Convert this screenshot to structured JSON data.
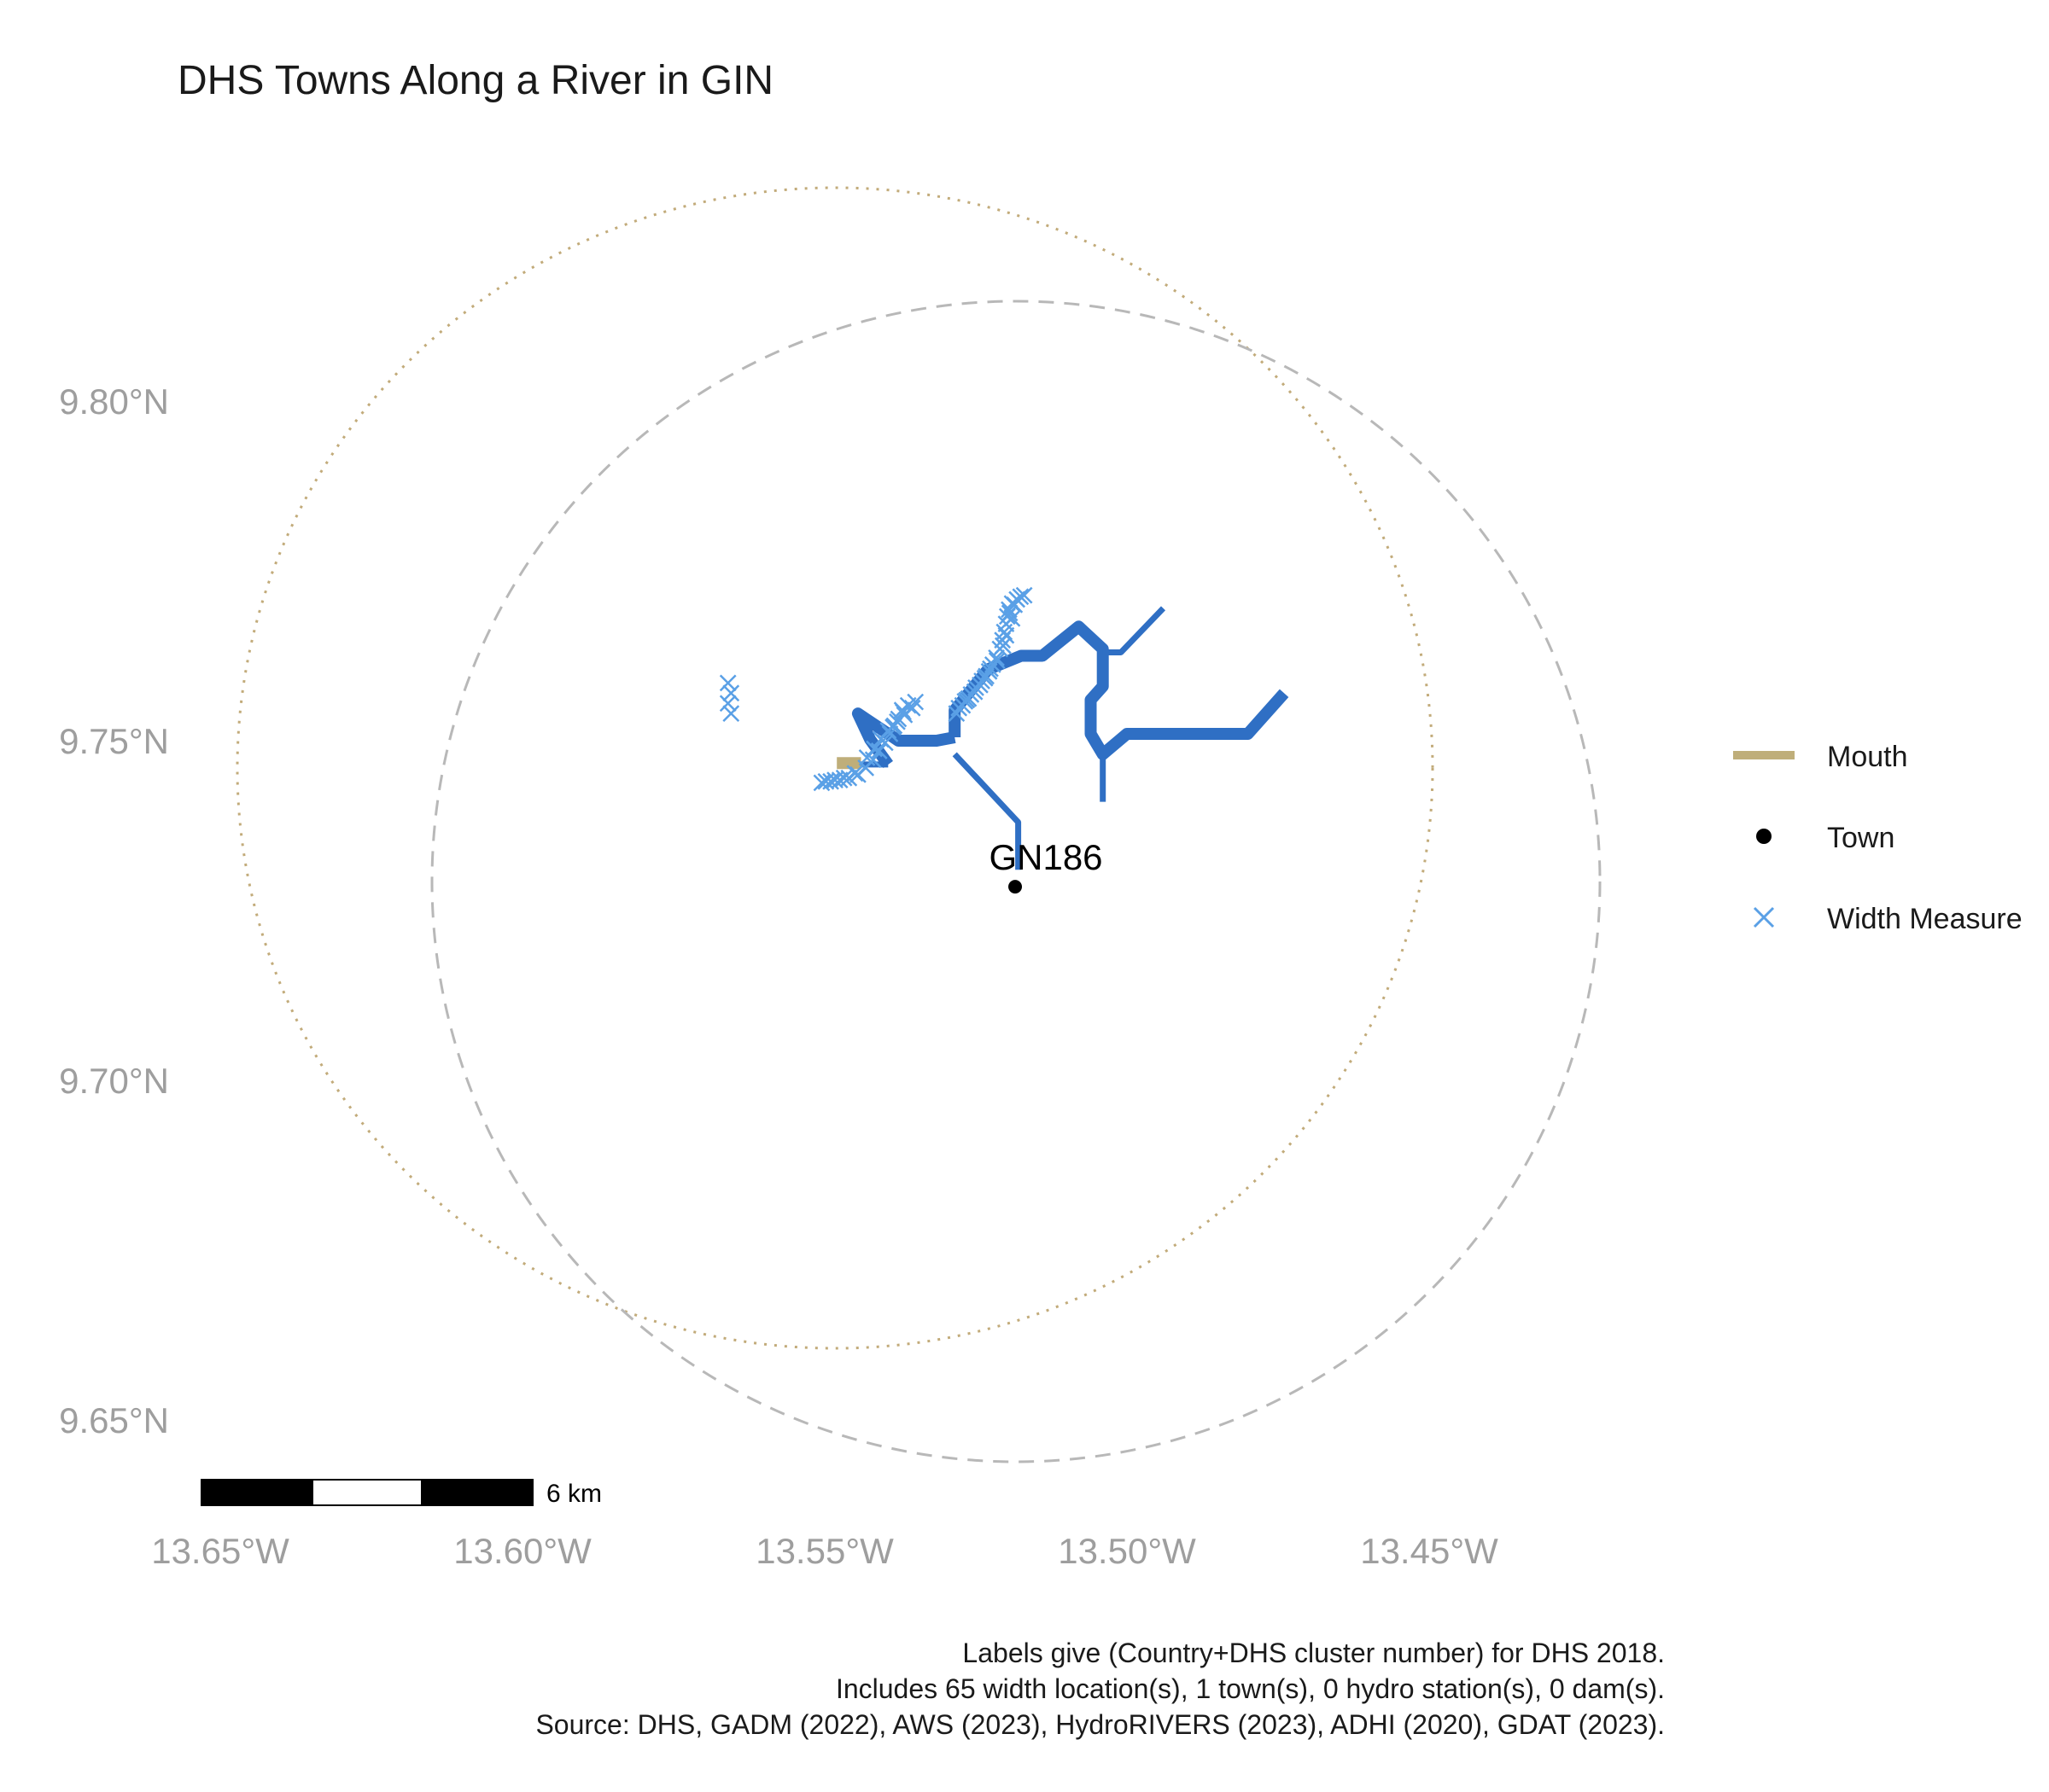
{
  "title": "DHS Towns Along a River in GIN",
  "colors": {
    "river": "#2f6fc4",
    "width_measure": "#5aa0e6",
    "mouth": "#bfae7a",
    "town": "#000000",
    "circle_dashed": "#b8b8b8",
    "circle_dotted": "#c2ab7a",
    "axis_text": "#9e9e9e"
  },
  "axes": {
    "x_ticks": [
      {
        "value": -13.65,
        "label": "13.65°W"
      },
      {
        "value": -13.6,
        "label": "13.60°W"
      },
      {
        "value": -13.55,
        "label": "13.55°W"
      },
      {
        "value": -13.5,
        "label": "13.50°W"
      },
      {
        "value": -13.45,
        "label": "13.45°W"
      }
    ],
    "y_ticks": [
      {
        "value": 9.8,
        "label": "9.80°N"
      },
      {
        "value": 9.75,
        "label": "9.75°N"
      },
      {
        "value": 9.7,
        "label": "9.70°N"
      },
      {
        "value": 9.65,
        "label": "9.65°N"
      }
    ]
  },
  "legend": {
    "items": [
      {
        "label": "Mouth",
        "symbol": "line"
      },
      {
        "label": "Town",
        "symbol": "dot"
      },
      {
        "label": "Width Measure",
        "symbol": "cross"
      }
    ]
  },
  "town": {
    "label": "GN186",
    "lon": -13.5185,
    "lat": 9.7285
  },
  "scale_bar": {
    "label": "6 km"
  },
  "caption": [
    "Labels give (Country+DHS cluster number) for DHS 2018.",
    "Includes 65 width location(s), 1 town(s), 0 hydro station(s), 0 dam(s).",
    "Source: DHS, GADM (2022), AWS (2023), HydroRIVERS (2023), ADHI (2020), GDAT (2023)."
  ],
  "rivers": [
    {
      "weight": 2,
      "coords": [
        [
          -13.5395,
          9.7465
        ],
        [
          -13.5425,
          9.7502
        ],
        [
          -13.5445,
          9.754
        ],
        [
          -13.5378,
          9.75
        ],
        [
          -13.5315,
          9.75
        ],
        [
          -13.5285,
          9.7505
        ]
      ]
    },
    {
      "weight": 2,
      "coords": [
        [
          -13.5285,
          9.7505
        ],
        [
          -13.5285,
          9.7545
        ],
        [
          -13.523,
          9.7605
        ],
        [
          -13.5175,
          9.7625
        ],
        [
          -13.514,
          9.7625
        ],
        [
          -13.508,
          9.7668
        ],
        [
          -13.504,
          9.7635
        ],
        [
          -13.504,
          9.758
        ],
        [
          -13.506,
          9.756
        ],
        [
          -13.506,
          9.751
        ],
        [
          -13.504,
          9.748
        ],
        [
          -13.5,
          9.751
        ],
        [
          -13.494,
          9.751
        ],
        [
          -13.48,
          9.751
        ],
        [
          -13.474,
          9.757
        ]
      ]
    },
    {
      "weight": 1,
      "coords": [
        [
          -13.5285,
          9.748
        ],
        [
          -13.518,
          9.738
        ],
        [
          -13.518,
          9.731
        ]
      ]
    },
    {
      "weight": 1,
      "coords": [
        [
          -13.504,
          9.7475
        ],
        [
          -13.504,
          9.741
        ]
      ]
    },
    {
      "weight": 1,
      "coords": [
        [
          -13.504,
          9.763
        ],
        [
          -13.501,
          9.763
        ],
        [
          -13.494,
          9.7695
        ]
      ]
    },
    {
      "weight": 1,
      "coords": [
        [
          -13.546,
          9.7465
        ],
        [
          -13.5395,
          9.7465
        ]
      ]
    }
  ],
  "mouth": [
    [
      -13.548,
      9.7467
    ],
    [
      -13.544,
      9.7467
    ]
  ],
  "width_measures": [
    [
      -13.566,
      9.7585
    ],
    [
      -13.5655,
      9.757
    ],
    [
      -13.566,
      9.7555
    ],
    [
      -13.5655,
      9.754
    ],
    [
      -13.5505,
      9.7438
    ],
    [
      -13.549,
      9.744
    ],
    [
      -13.5475,
      9.7442
    ],
    [
      -13.546,
      9.7445
    ],
    [
      -13.5445,
      9.745
    ],
    [
      -13.5432,
      9.746
    ],
    [
      -13.542,
      9.7472
    ],
    [
      -13.541,
      9.7485
    ],
    [
      -13.54,
      9.7497
    ],
    [
      -13.5392,
      9.751
    ],
    [
      -13.5385,
      9.7522
    ],
    [
      -13.5378,
      9.7532
    ],
    [
      -13.537,
      9.7542
    ],
    [
      -13.5362,
      9.7552
    ],
    [
      -13.535,
      9.7557
    ],
    [
      -13.5282,
      9.754
    ],
    [
      -13.5272,
      9.7552
    ],
    [
      -13.5262,
      9.7562
    ],
    [
      -13.5252,
      9.7572
    ],
    [
      -13.5243,
      9.7582
    ],
    [
      -13.5235,
      9.7592
    ],
    [
      -13.5228,
      9.7602
    ],
    [
      -13.5222,
      9.7612
    ],
    [
      -13.5216,
      9.7622
    ],
    [
      -13.521,
      9.7635
    ],
    [
      -13.5206,
      9.7648
    ],
    [
      -13.5203,
      9.766
    ],
    [
      -13.52,
      9.7672
    ],
    [
      -13.5198,
      9.7683
    ],
    [
      -13.5195,
      9.7693
    ],
    [
      -13.519,
      9.7702
    ],
    [
      -13.5182,
      9.7708
    ],
    [
      -13.5176,
      9.7712
    ],
    [
      -13.517,
      9.7714
    ],
    [
      -13.519,
      9.768
    ],
    [
      -13.5205,
      9.764
    ],
    [
      -13.5215,
      9.7618
    ],
    [
      -13.5233,
      9.7595
    ],
    [
      -13.525,
      9.7578
    ],
    [
      -13.5265,
      9.756
    ],
    [
      -13.5278,
      9.7548
    ],
    [
      -13.5355,
      9.7548
    ],
    [
      -13.5368,
      9.7538
    ],
    [
      -13.538,
      9.7528
    ],
    [
      -13.5395,
      9.7515
    ],
    [
      -13.5407,
      9.7502
    ],
    [
      -13.5418,
      9.7488
    ],
    [
      -13.543,
      9.7475
    ],
    [
      -13.545,
      9.7452
    ],
    [
      -13.5468,
      9.7445
    ],
    [
      -13.5483,
      9.7442
    ],
    [
      -13.5498,
      9.744
    ],
    [
      -13.52,
      9.7655
    ],
    [
      -13.5194,
      9.7688
    ],
    [
      -13.5186,
      9.77
    ],
    [
      -13.5226,
      9.7606
    ],
    [
      -13.524,
      9.7588
    ],
    [
      -13.5258,
      9.7568
    ],
    [
      -13.5268,
      9.7558
    ],
    [
      -13.5372,
      9.7545
    ],
    [
      -13.5387,
      9.752
    ]
  ]
}
